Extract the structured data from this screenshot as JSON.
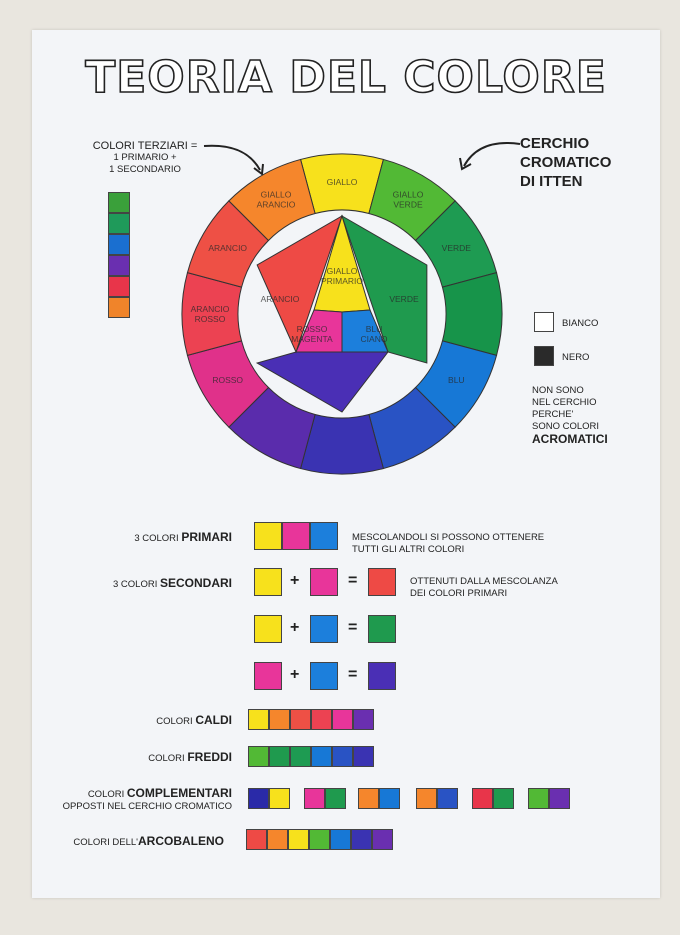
{
  "title": "TEORIA DEL COLORE",
  "tertiary_note": {
    "line1": "COLORI TERZIARI =",
    "line2": "1 PRIMARIO +",
    "line3": "1 SECONDARIO"
  },
  "wheel_caption": {
    "line1": "CERCHIO",
    "line2": "CROMATICO",
    "line3": "DI ITTEN"
  },
  "tertiary_swatches": [
    "#3aa03a",
    "#1f9a5a",
    "#1a6fd0",
    "#6a2fb0",
    "#e8354a",
    "#f0842a"
  ],
  "wheel": {
    "outer": [
      {
        "label": "GIALLO",
        "color": "#f7e11c"
      },
      {
        "label": "GIALLO VERDE",
        "color": "#52b935"
      },
      {
        "label": "VERDE",
        "color": "#1e9b52"
      },
      {
        "label": "",
        "color": "#17944a"
      },
      {
        "label": "BLU",
        "color": "#1778d6"
      },
      {
        "label": "",
        "color": "#2953c4"
      },
      {
        "label": "",
        "color": "#3a33b2"
      },
      {
        "label": "",
        "color": "#5a2cac"
      },
      {
        "label": "ROSSO",
        "color": "#e0318a"
      },
      {
        "label": "ARANCIO ROSSO",
        "color": "#ec4252"
      },
      {
        "label": "ARANCIO",
        "color": "#ee5045"
      },
      {
        "label": "GIALLO ARANCIO",
        "color": "#f5862c"
      }
    ],
    "center": [
      {
        "label": "GIALLO PRIMARIO",
        "color": "#f7e11c"
      },
      {
        "label": "ROSSO MAGENTA",
        "color": "#e8359a"
      },
      {
        "label": "BLU CIANO",
        "color": "#1c7fdc"
      }
    ],
    "outer_triangles": [
      {
        "label": "VERDE",
        "color": "#1f9a4e"
      },
      {
        "label": "",
        "color": "#4a2fb5"
      },
      {
        "label": "ARANCIO",
        "color": "#ee4a45"
      }
    ]
  },
  "achromatic": {
    "bianco": {
      "label": "BIANCO",
      "color": "#ffffff"
    },
    "nero": {
      "label": "NERO",
      "color": "#2a2a2a"
    },
    "note1": "NON SONO",
    "note2": "NEL CERCHIO",
    "note3": "PERCHE'",
    "note4": "SONO COLORI",
    "note5": "ACROMATICI"
  },
  "primari": {
    "label_prefix": "3 COLORI",
    "label_bold": "PRIMARI",
    "colors": [
      "#f7e11c",
      "#e8359a",
      "#1c7fdc"
    ],
    "note1": "MESCOLANDOLI SI POSSONO OTTENERE",
    "note2": "TUTTI GLI ALTRI COLORI"
  },
  "secondari": {
    "label_prefix": "3 COLORI",
    "label_bold": "SECONDARI",
    "plus": "+",
    "equals": "=",
    "note1": "OTTENUTI DALLA MESCOLANZA",
    "note2": "DEI COLORI PRIMARI",
    "rows": [
      {
        "a": "#f7e11c",
        "b": "#e8359a",
        "c": "#ee4a45"
      },
      {
        "a": "#f7e11c",
        "b": "#1c7fdc",
        "c": "#1f9a4e"
      },
      {
        "a": "#e8359a",
        "b": "#1c7fdc",
        "c": "#4a2fb5"
      }
    ]
  },
  "caldi": {
    "label_prefix": "COLORI",
    "label_bold": "CALDI",
    "colors": [
      "#f7e11c",
      "#f5862c",
      "#ee5045",
      "#ec4252",
      "#e8359a",
      "#6a2fb0"
    ]
  },
  "freddi": {
    "label_prefix": "COLORI",
    "label_bold": "FREDDI",
    "colors": [
      "#52b935",
      "#1f9a4e",
      "#1e9b52",
      "#1778d6",
      "#2953c4",
      "#3a33b2"
    ]
  },
  "complementari": {
    "label_prefix": "COLORI",
    "label_bold": "COMPLEMENTARI",
    "label2": "OPPOSTI NEL CERCHIO CROMATICO",
    "pairs": [
      [
        "#2a2aa8",
        "#f7e11c"
      ],
      [
        "#e8359a",
        "#1f9a4e"
      ],
      [
        "#f5862c",
        "#1778d6"
      ],
      [
        "#f5862c",
        "#2953c4"
      ],
      [
        "#e8354a",
        "#1f9a4e"
      ],
      [
        "#52b935",
        "#6a2fb0"
      ]
    ]
  },
  "arcobaleno": {
    "label_prefix": "COLORI DELL'",
    "label_bold": "ARCOBALENO",
    "colors": [
      "#ee4a45",
      "#f5862c",
      "#f7e11c",
      "#52b935",
      "#1778d6",
      "#3a33b2",
      "#6a2fb0"
    ]
  }
}
